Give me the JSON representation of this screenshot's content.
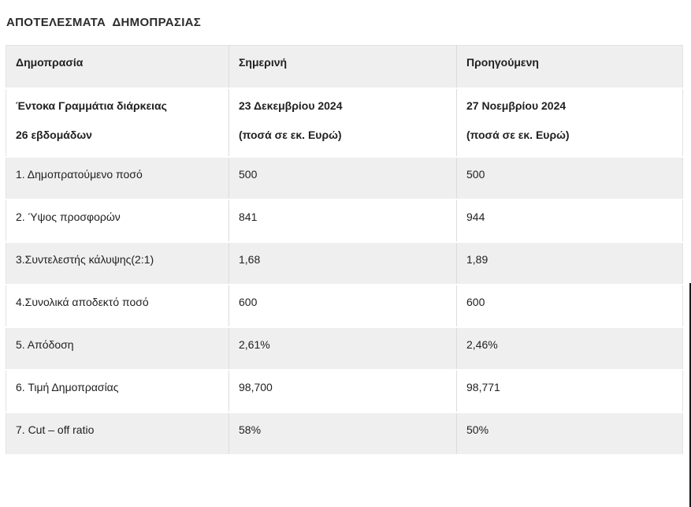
{
  "page": {
    "title": "ΑΠΟΤΕΛΕΣΜΑΤΑ  ΔΗΜΟΠΡΑΣΙΑΣ"
  },
  "table": {
    "headers": [
      "Δημοπρασία",
      "Σημερινή",
      "Προηγούμενη"
    ],
    "subheader": {
      "col1": [
        "Έντοκα Γραμμάτια διάρκειας",
        "26 εβδομάδων"
      ],
      "col2": [
        "23 Δεκεμβρίου 2024",
        "(ποσά σε εκ. Ευρώ)"
      ],
      "col3": [
        "27 Νοεμβρίου 2024",
        "(ποσά σε εκ. Ευρώ)"
      ]
    },
    "rows": [
      {
        "label": "1. Δημοπρατούμενο ποσό",
        "current": "500",
        "previous": "500"
      },
      {
        "label": "2. Ύψος προσφορών",
        "current": "841",
        "previous": "944"
      },
      {
        "label": "3.Συντελεστής κάλυψης(2:1)",
        "current": "1,68",
        "previous": "1,89"
      },
      {
        "label": "4.Συνολικά αποδεκτό ποσό",
        "current": "600",
        "previous": "600"
      },
      {
        "label": "5. Απόδοση",
        "current": "2,61%",
        "previous": "2,46%"
      },
      {
        "label": "6. Τιμή Δημοπρασίας",
        "current": "98,700",
        "previous": "98,771"
      },
      {
        "label": "7. Cut – off ratio",
        "current": "58%",
        "previous": "50%"
      }
    ],
    "colors": {
      "stripe_gray": "#efefef",
      "row_white": "#ffffff",
      "divider": "#dcdcdc",
      "text": "#212121"
    }
  }
}
